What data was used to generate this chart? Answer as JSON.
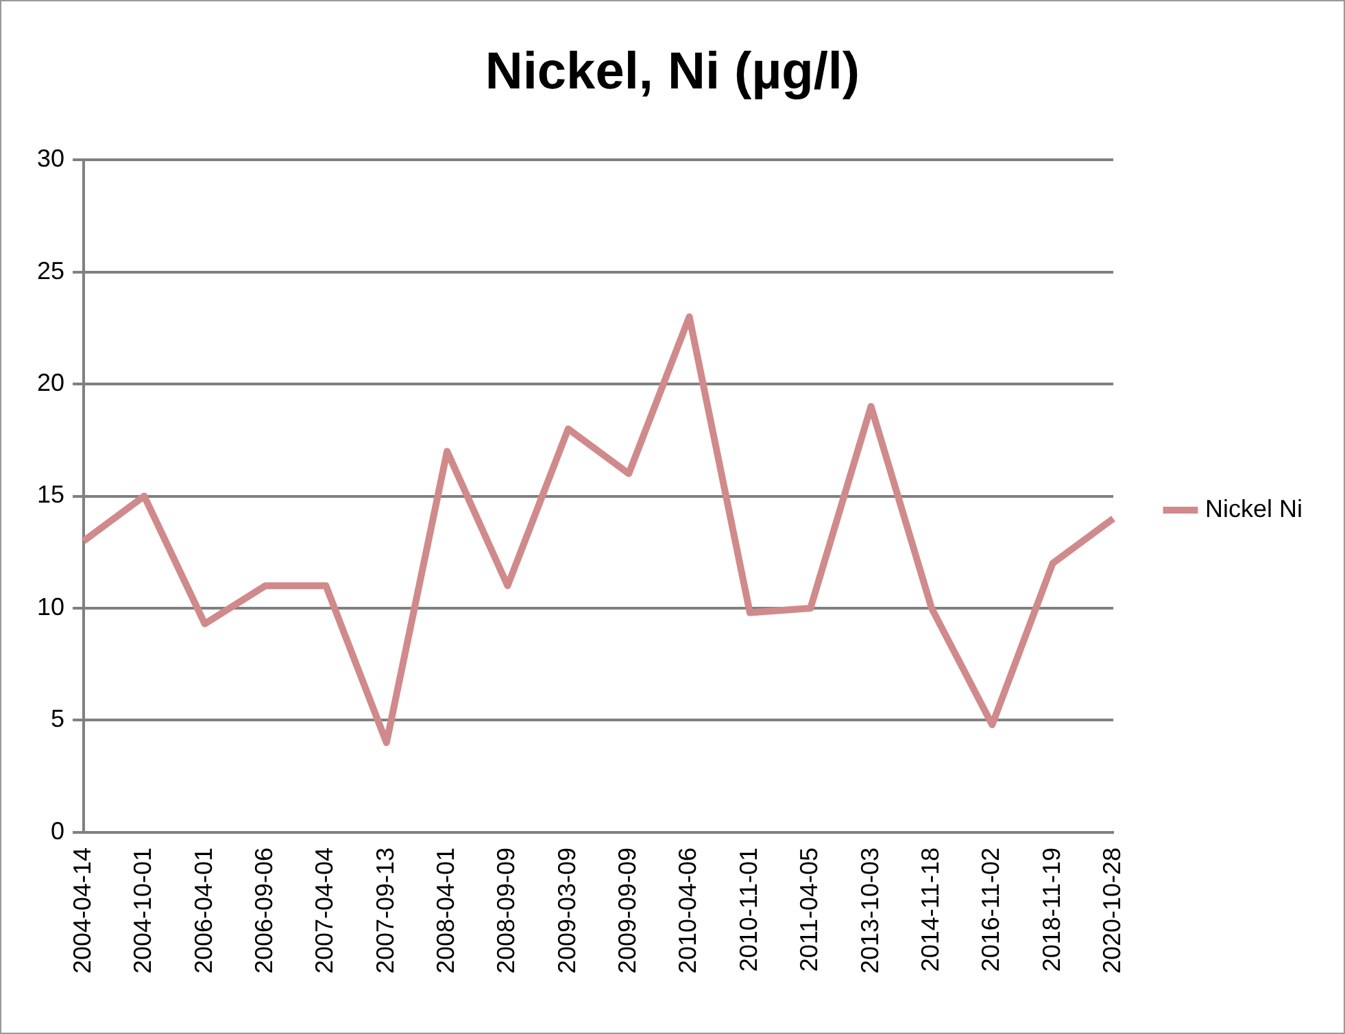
{
  "chart_data": {
    "type": "line",
    "title": "Nickel, Ni (µg/l)",
    "categories": [
      "2004-04-14",
      "2004-10-01",
      "2006-04-01",
      "2006-09-06",
      "2007-04-04",
      "2007-09-13",
      "2008-04-01",
      "2008-09-09",
      "2009-03-09",
      "2009-09-09",
      "2010-04-06",
      "2010-11-01",
      "2011-04-05",
      "2013-10-03",
      "2014-11-18",
      "2016-11-02",
      "2018-11-19",
      "2020-10-28"
    ],
    "series": [
      {
        "name": "Nickel Ni",
        "color": "#d08a8b",
        "values": [
          13,
          15,
          9.3,
          11,
          11,
          4,
          17,
          11,
          18,
          16,
          23,
          9.8,
          10,
          19,
          10,
          4.8,
          12,
          14
        ]
      }
    ],
    "ylim": [
      0,
      30
    ],
    "yticks": [
      0,
      5,
      10,
      15,
      20,
      25,
      30
    ],
    "grid": "y",
    "legend": "right",
    "marker": "none"
  }
}
